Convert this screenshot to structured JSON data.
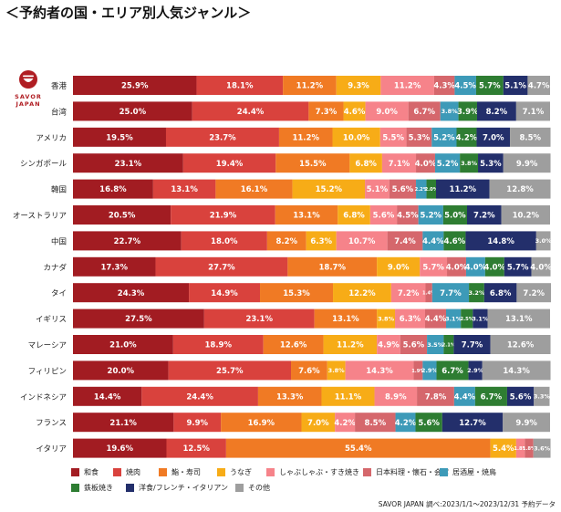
{
  "title": "＜予約者の国・エリア別人気ジャンル＞",
  "logo": {
    "line1": "SAVOR",
    "line2": "JAPAN"
  },
  "source": "SAVOR JAPAN 調べ:2023/1/1～2023/12/31 予約データ",
  "colors": [
    "#a21c22",
    "#d9423d",
    "#f07a24",
    "#f7ac17",
    "#f6838a",
    "#d5676c",
    "#3d9ab8",
    "#2e7d32",
    "#232f6b",
    "#9e9e9e"
  ],
  "chart_data": {
    "type": "bar",
    "orientation": "horizontal",
    "stacked": true,
    "normalized": true,
    "xlim": [
      0,
      100
    ],
    "categories": [
      "香港",
      "台湾",
      "アメリカ",
      "シンガポール",
      "韓国",
      "オーストラリア",
      "中国",
      "カナダ",
      "タイ",
      "イギリス",
      "マレーシア",
      "フィリピン",
      "インドネシア",
      "フランス",
      "イタリア"
    ],
    "series": [
      {
        "name": "和食",
        "values": [
          25.9,
          25.0,
          19.5,
          23.1,
          16.8,
          20.5,
          22.7,
          17.3,
          24.3,
          27.5,
          21.0,
          20.0,
          14.4,
          21.1,
          19.6
        ]
      },
      {
        "name": "焼肉",
        "values": [
          18.1,
          24.4,
          23.7,
          19.4,
          13.1,
          21.9,
          18.0,
          27.7,
          14.9,
          23.1,
          18.9,
          25.7,
          24.4,
          9.9,
          12.5
        ]
      },
      {
        "name": "鮨・寿司",
        "values": [
          11.2,
          7.3,
          11.2,
          15.5,
          16.1,
          13.1,
          8.2,
          18.7,
          15.3,
          13.1,
          12.6,
          7.6,
          13.3,
          16.9,
          55.4
        ]
      },
      {
        "name": "うなぎ",
        "values": [
          9.3,
          4.6,
          10.0,
          6.8,
          15.2,
          6.8,
          6.3,
          9.0,
          12.2,
          3.8,
          11.2,
          3.8,
          11.1,
          7.0,
          5.4
        ]
      },
      {
        "name": "しゃぶしゃぶ・すき焼き",
        "values": [
          11.2,
          9.0,
          5.5,
          7.1,
          5.1,
          5.6,
          10.7,
          5.7,
          7.2,
          6.3,
          4.9,
          14.3,
          8.9,
          4.2,
          1.8
        ]
      },
      {
        "name": "日本料理・懐石・会席",
        "values": [
          4.3,
          6.7,
          5.3,
          4.0,
          5.6,
          4.5,
          7.4,
          4.0,
          1.4,
          4.4,
          5.6,
          1.9,
          7.8,
          8.5,
          1.8
        ]
      },
      {
        "name": "居酒屋・焼鳥",
        "values": [
          4.5,
          3.8,
          5.2,
          5.2,
          2.2,
          5.2,
          4.4,
          4.0,
          7.7,
          3.1,
          3.5,
          2.9,
          4.4,
          4.2,
          0.0
        ]
      },
      {
        "name": "鉄板焼き",
        "values": [
          5.7,
          3.9,
          4.2,
          3.8,
          2.0,
          5.0,
          4.6,
          4.0,
          3.2,
          2.5,
          2.1,
          6.7,
          6.7,
          5.6,
          0.0
        ]
      },
      {
        "name": "洋食/フレンチ・イタリアン",
        "values": [
          5.1,
          8.2,
          7.0,
          5.3,
          11.2,
          7.2,
          14.8,
          5.7,
          6.8,
          3.1,
          7.7,
          2.9,
          5.6,
          12.7,
          0.0
        ]
      },
      {
        "name": "その他",
        "values": [
          4.7,
          7.1,
          8.5,
          9.9,
          12.8,
          10.2,
          3.0,
          4.0,
          7.2,
          13.1,
          12.6,
          14.3,
          3.3,
          9.9,
          3.6
        ]
      }
    ],
    "labels": [
      [
        "25.9%",
        "18.1%",
        "11.2%",
        "9.3%",
        "11.2%",
        "4.3%",
        "4.5%",
        "5.7%",
        "5.1%",
        "4.7%"
      ],
      [
        "25.0%",
        "24.4%",
        "7.3%",
        "4.6%",
        "9.0%",
        "6.7%",
        "3.8%",
        "3.9%",
        "8.2%",
        "7.1%"
      ],
      [
        "19.5%",
        "23.7%",
        "11.2%",
        "10.0%",
        "5.5%",
        "5.3%",
        "5.2%",
        "4.2%",
        "7.0%",
        "8.5%"
      ],
      [
        "23.1%",
        "19.4%",
        "15.5%",
        "6.8%",
        "7.1%",
        "4.0%",
        "5.2%",
        "3.8%",
        "5.3%",
        "9.9%"
      ],
      [
        "16.8%",
        "13.1%",
        "16.1%",
        "15.2%",
        "5.1%",
        "5.6%",
        "2.2%",
        "2.0%",
        "11.2%",
        "12.8%"
      ],
      [
        "20.5%",
        "21.9%",
        "13.1%",
        "6.8%",
        "5.6%",
        "4.5%",
        "5.2%",
        "5.0%",
        "7.2%",
        "10.2%"
      ],
      [
        "22.7%",
        "18.0%",
        "8.2%",
        "6.3%",
        "10.7%",
        "7.4%",
        "4.4%",
        "4.6%",
        "14.8%",
        "3.0%"
      ],
      [
        "17.3%",
        "27.7%",
        "18.7%",
        "9.0%",
        "5.7%",
        "4.0%",
        "4.0%",
        "4.0%",
        "5.7%",
        "4.0%"
      ],
      [
        "24.3%",
        "14.9%",
        "15.3%",
        "12.2%",
        "7.2%",
        "1.4%",
        "7.7%",
        "3.2%",
        "6.8%",
        "7.2%"
      ],
      [
        "27.5%",
        "23.1%",
        "13.1%",
        "3.8%",
        "6.3%",
        "4.4%",
        "3.1%",
        "2.5%",
        "3.1%",
        "13.1%"
      ],
      [
        "21.0%",
        "18.9%",
        "12.6%",
        "11.2%",
        "4.9%",
        "5.6%",
        "3.5%",
        "2.1%",
        "7.7%",
        "12.6%"
      ],
      [
        "20.0%",
        "25.7%",
        "7.6%",
        "3.8%",
        "14.3%",
        "1.9%",
        "2.9%",
        "6.7%",
        "2.9%",
        "14.3%"
      ],
      [
        "14.4%",
        "24.4%",
        "13.3%",
        "11.1%",
        "8.9%",
        "7.8%",
        "4.4%",
        "6.7%",
        "5.6%",
        "3.3%"
      ],
      [
        "21.1%",
        "9.9%",
        "16.9%",
        "7.0%",
        "4.2%",
        "8.5%",
        "4.2%",
        "5.6%",
        "12.7%",
        "9.9%"
      ],
      [
        "19.6%",
        "12.5%",
        "55.4%",
        "5.4%",
        "1.8%",
        "1.8%",
        "",
        "",
        "",
        "3.6%"
      ]
    ]
  }
}
